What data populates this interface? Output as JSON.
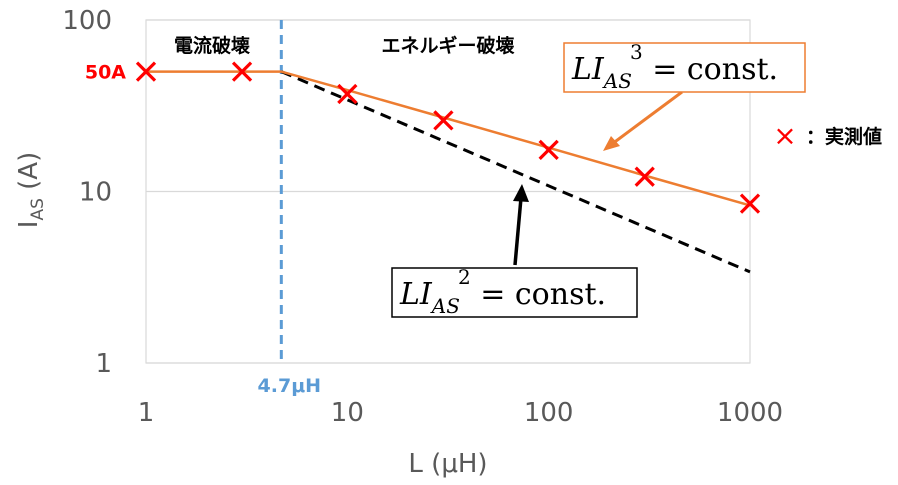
{
  "chart_data": {
    "type": "line",
    "x_scale": "log",
    "y_scale": "log",
    "xlim": [
      1,
      1000
    ],
    "ylim": [
      1,
      100
    ],
    "x_ticks": [
      "1",
      "10",
      "100",
      "1000"
    ],
    "y_ticks": [
      "100",
      "10",
      "1"
    ],
    "xlabel": "L (μH)",
    "ylabel_main": "I",
    "ylabel_sub": "AS",
    "ylabel_unit": " (A)",
    "grid": "horizontal",
    "series": [
      {
        "name": "実測値",
        "style": "markers",
        "marker": "x",
        "color": "#ff0000",
        "x": [
          1,
          3,
          10,
          30,
          100,
          300,
          1000
        ],
        "y": [
          50,
          50,
          37,
          26,
          17.5,
          12.2,
          8.5
        ]
      },
      {
        "style": "solid-line",
        "color": "#ed7d31",
        "x": [
          1,
          4.7,
          10,
          30,
          100,
          300,
          1000
        ],
        "y": [
          50,
          50,
          39,
          27,
          18,
          12.4,
          8.3
        ]
      },
      {
        "style": "dashed-line",
        "color": "#000000",
        "x": [
          4.7,
          1000
        ],
        "y": [
          50,
          3.4
        ]
      }
    ],
    "vline": {
      "x": 4.7,
      "label": "4.7μH",
      "color": "#5b9bd5"
    },
    "hmark": {
      "y": 50,
      "label": "50A",
      "color": "#ff0000"
    },
    "regions": [
      "電流破壊",
      "エネルギー破壊"
    ],
    "equations": [
      {
        "L": "L",
        "I": "I",
        "sub": "AS",
        "power": "3",
        "rest": " = const.",
        "border": "#ed7d31"
      },
      {
        "L": "L",
        "I": "I",
        "sub": "AS",
        "power": "2",
        "rest": " = const.",
        "border": "#000000"
      }
    ],
    "legend": {
      "symbol": "×",
      "text": "：実測値",
      "color": "#ff0000",
      "position": "right"
    }
  }
}
